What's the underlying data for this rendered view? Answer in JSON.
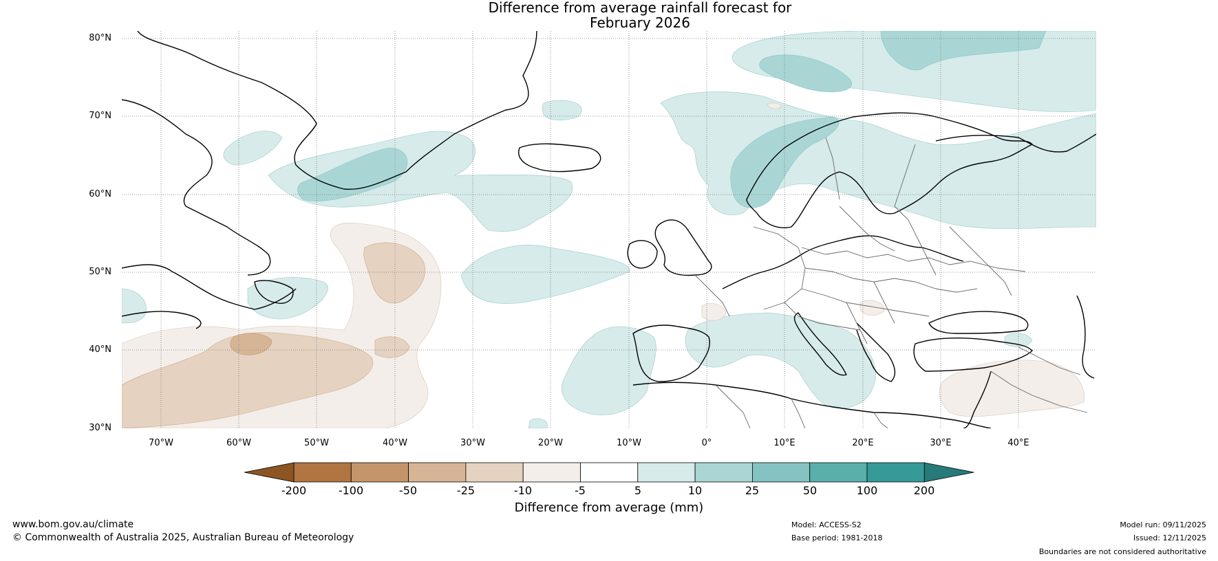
{
  "title": {
    "line1": "Difference from average rainfall forecast for",
    "line2": "February 2026"
  },
  "map": {
    "lat_labels": [
      "80°N",
      "70°N",
      "60°N",
      "50°N",
      "40°N",
      "30°N"
    ],
    "lon_labels": [
      "70°W",
      "60°W",
      "50°W",
      "40°W",
      "30°W",
      "20°W",
      "10°W",
      "0°",
      "10°E",
      "20°E",
      "30°E",
      "40°E"
    ],
    "lat_range": [
      30,
      81
    ],
    "lon_range": [
      -75,
      50
    ]
  },
  "colorbar": {
    "ticks": [
      "-200",
      "-100",
      "-50",
      "-25",
      "-10",
      "-5",
      "5",
      "10",
      "25",
      "50",
      "100",
      "200"
    ],
    "colors": [
      "#8d5524",
      "#b07540",
      "#c4956a",
      "#d6b596",
      "#e6d2c0",
      "#f3eeea",
      "#ffffff",
      "#d6ebea",
      "#a9d6d5",
      "#84c3c2",
      "#5aafad",
      "#359a98",
      "#267b7a"
    ],
    "label": "Difference from average (mm)"
  },
  "footer": {
    "website": "www.bom.gov.au/climate",
    "copyright": "© Commonwealth of Australia 2025, Australian Bureau of Meteorology",
    "model": "Model: ACCESS-S2",
    "base_period": "Base period: 1981-2018",
    "model_run": "Model run: 09/11/2025",
    "issued": "Issued: 12/11/2025",
    "disclaimer": "Boundaries are not considered authoritative"
  }
}
